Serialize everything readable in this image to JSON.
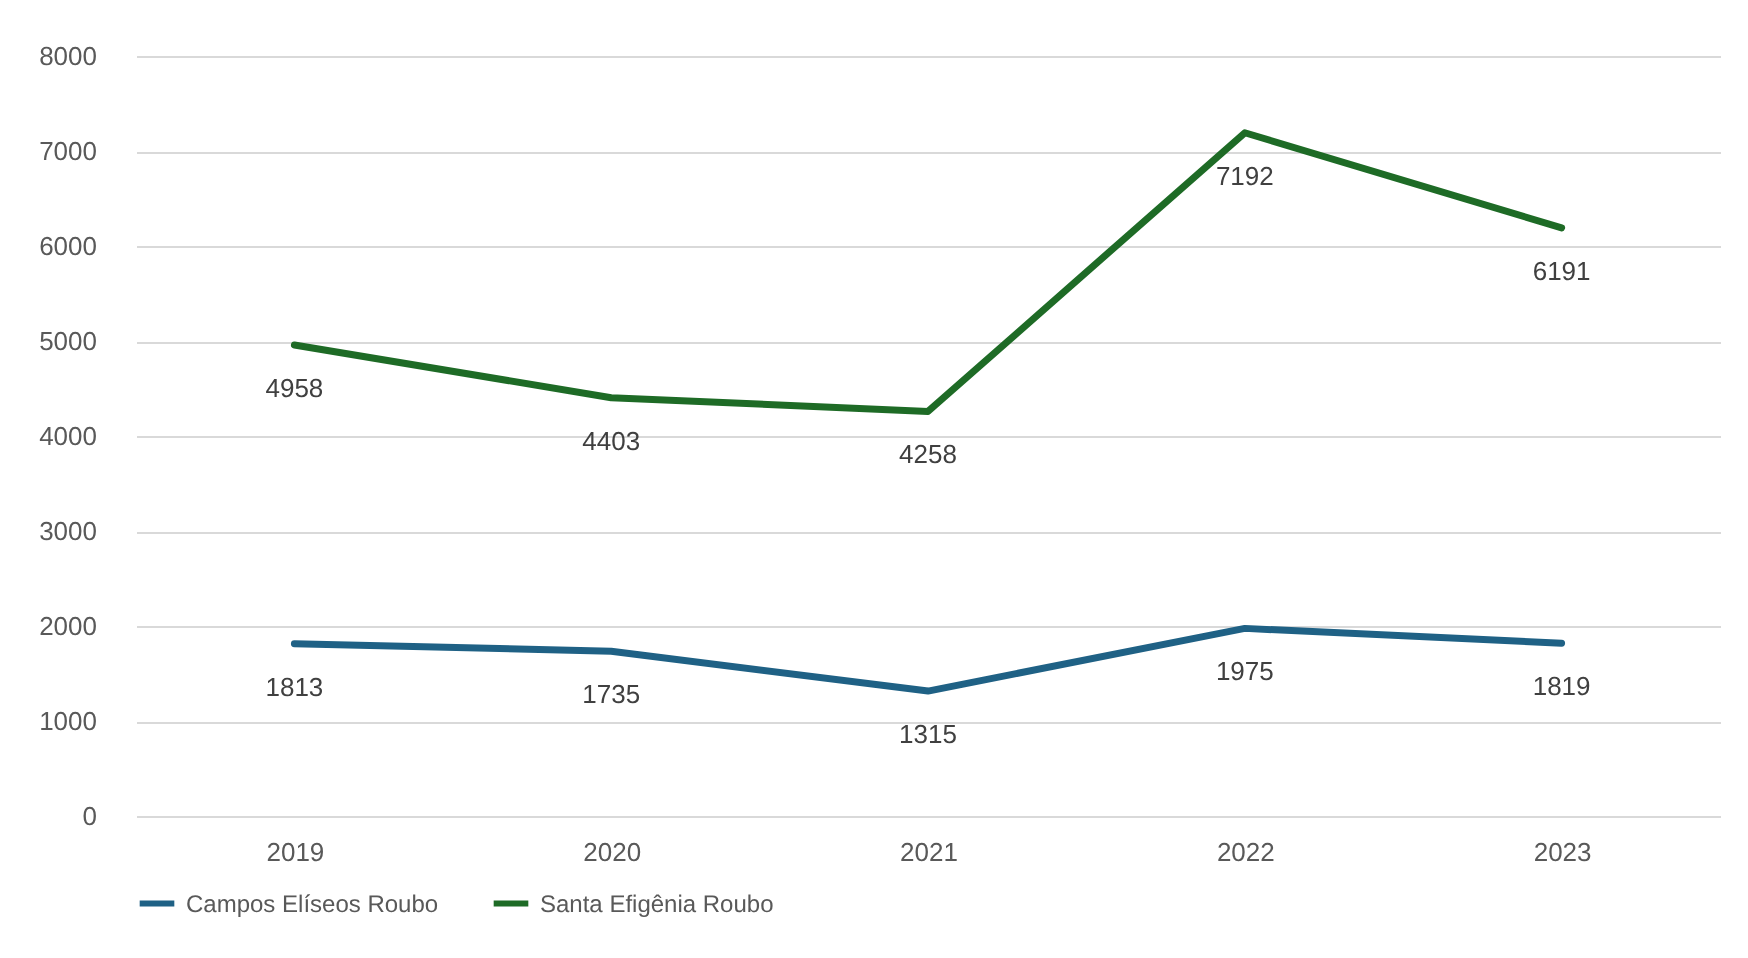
{
  "chart_data": {
    "type": "line",
    "categories": [
      "2019",
      "2020",
      "2021",
      "2022",
      "2023"
    ],
    "series": [
      {
        "name": "Campos Elíseos Roubo",
        "color": "#1f6185",
        "values": [
          1813,
          1735,
          1315,
          1975,
          1819
        ]
      },
      {
        "name": "Santa Efigênia Roubo",
        "color": "#1e6b26",
        "values": [
          4958,
          4403,
          4258,
          7192,
          6191
        ]
      }
    ],
    "ylim": [
      0,
      8000
    ],
    "yticks": [
      0,
      1000,
      2000,
      3000,
      4000,
      5000,
      6000,
      7000,
      8000
    ],
    "grid": "y",
    "legend": "bottom",
    "data_labels": true,
    "marker": "none",
    "line_style": "solid"
  }
}
